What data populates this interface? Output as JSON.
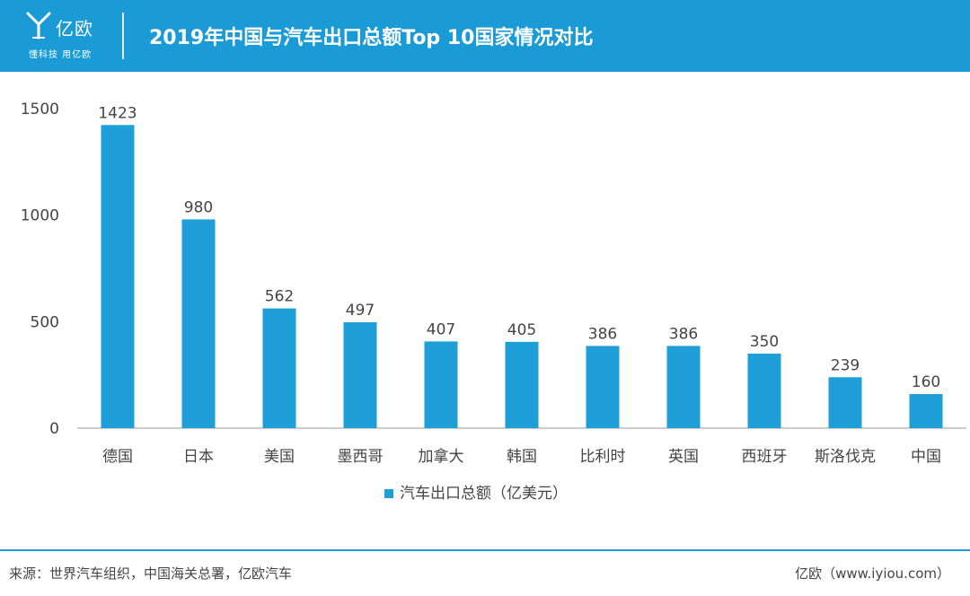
{
  "header": {
    "logo_name": "亿欧",
    "logo_slogan": "懂科技 用亿欧",
    "title": "2019年中国与汽车出口总额Top 10国家情况对比"
  },
  "colors": {
    "brand": "#1b9bd6",
    "bar": "#1e9fd8",
    "axis": "#9a9a9a",
    "text": "#444444"
  },
  "chart_data": {
    "type": "bar",
    "categories": [
      "德国",
      "日本",
      "美国",
      "墨西哥",
      "加拿大",
      "韩国",
      "比利时",
      "英国",
      "西班牙",
      "斯洛伐克",
      "中国"
    ],
    "series": [
      {
        "name": "汽车出口总额（亿美元）",
        "values": [
          1423,
          980,
          562,
          497,
          407,
          405,
          386,
          386,
          350,
          239,
          160
        ]
      }
    ],
    "data_labels": [
      "1423",
      "980",
      "562",
      "497",
      "407",
      "405",
      "386",
      "386",
      "350",
      "239",
      "160"
    ],
    "y_ticks": [
      0,
      500,
      1000,
      1500
    ],
    "y_tick_labels": [
      "0",
      "500",
      "1000",
      "1500"
    ],
    "ylim": [
      0,
      1500
    ],
    "grid": false,
    "legend_position": "bottom"
  },
  "footer": {
    "source": "来源：世界汽车组织，中国海关总署，亿欧汽车",
    "site": "亿欧（www.iyiou.com）"
  }
}
